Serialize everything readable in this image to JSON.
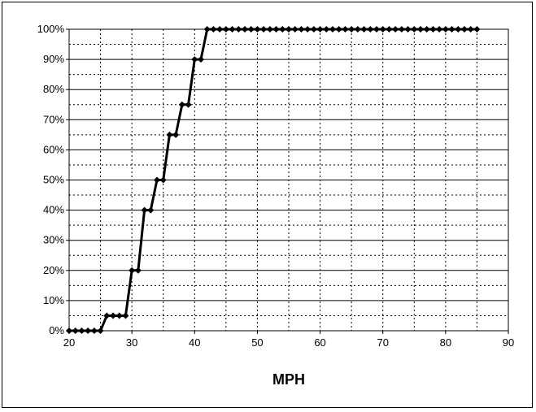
{
  "chart_data": {
    "type": "line",
    "title": "",
    "xlabel": "MPH",
    "ylabel": "",
    "xlim": [
      20,
      90
    ],
    "ylim": [
      0,
      100
    ],
    "x_ticks": [
      20,
      30,
      40,
      50,
      60,
      70,
      80,
      90
    ],
    "y_ticks": [
      "0%",
      "10%",
      "20%",
      "30%",
      "40%",
      "50%",
      "60%",
      "70%",
      "80%",
      "90%",
      "100%"
    ],
    "y_tick_values": [
      0,
      10,
      20,
      30,
      40,
      50,
      60,
      70,
      80,
      90,
      100
    ],
    "grid": true,
    "legend": "none",
    "series": [
      {
        "color": "#000000",
        "marker": "diamond",
        "x": [
          20,
          21,
          22,
          23,
          24,
          25,
          26,
          27,
          28,
          29,
          30,
          31,
          32,
          33,
          34,
          35,
          36,
          37,
          38,
          39,
          40,
          41,
          42,
          43,
          44,
          45,
          46,
          47,
          48,
          49,
          50,
          51,
          52,
          53,
          54,
          55,
          56,
          57,
          58,
          59,
          60,
          61,
          62,
          63,
          64,
          65,
          66,
          67,
          68,
          69,
          70,
          71,
          72,
          73,
          74,
          75,
          76,
          77,
          78,
          79,
          80,
          81,
          82,
          83,
          84,
          85
        ],
        "values": [
          0,
          0,
          0,
          0,
          0,
          0,
          5,
          5,
          5,
          5,
          20,
          20,
          40,
          40,
          50,
          50,
          65,
          65,
          75,
          75,
          90,
          90,
          100,
          100,
          100,
          100,
          100,
          100,
          100,
          100,
          100,
          100,
          100,
          100,
          100,
          100,
          100,
          100,
          100,
          100,
          100,
          100,
          100,
          100,
          100,
          100,
          100,
          100,
          100,
          100,
          100,
          100,
          100,
          100,
          100,
          100,
          100,
          100,
          100,
          100,
          100,
          100,
          100,
          100,
          100,
          100
        ]
      }
    ]
  }
}
